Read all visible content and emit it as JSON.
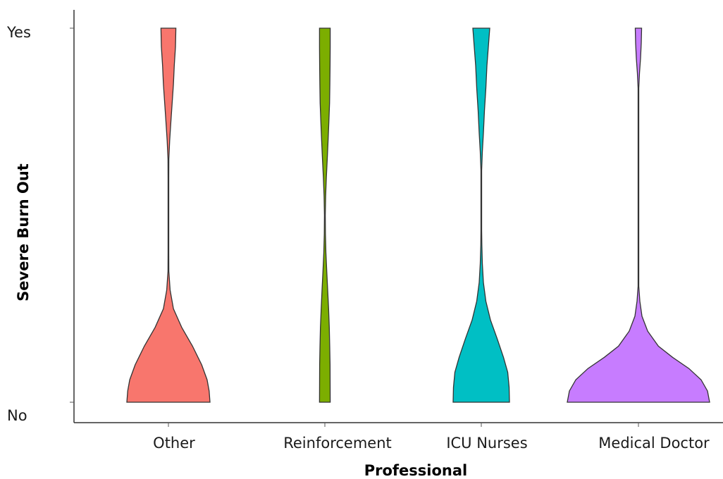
{
  "chart_data": {
    "type": "violin",
    "title": "",
    "xlabel": "Professional",
    "ylabel": "Severe Burn Out",
    "categories": [
      "Other",
      "Reinforcement",
      "ICU Nurses",
      "Medical Doctor"
    ],
    "y_levels": [
      "No",
      "Yes"
    ],
    "ylim": [
      0,
      1
    ],
    "grid": false,
    "legend": "none",
    "colors": [
      "#F8766D",
      "#7CAE00",
      "#00BFC4",
      "#C77CFF"
    ],
    "series": [
      {
        "category": "Other",
        "color": "#F8766D",
        "density_profile": [
          [
            0.0,
            1.0
          ],
          [
            0.03,
            0.98
          ],
          [
            0.06,
            0.93
          ],
          [
            0.1,
            0.8
          ],
          [
            0.15,
            0.58
          ],
          [
            0.2,
            0.32
          ],
          [
            0.25,
            0.12
          ],
          [
            0.3,
            0.04
          ],
          [
            0.35,
            0.01
          ],
          [
            0.4,
            0.0
          ],
          [
            0.55,
            0.0
          ],
          [
            0.6,
            0.0
          ],
          [
            0.65,
            0.01
          ],
          [
            0.7,
            0.03
          ],
          [
            0.75,
            0.06
          ],
          [
            0.8,
            0.09
          ],
          [
            0.85,
            0.12
          ],
          [
            0.9,
            0.14
          ],
          [
            0.95,
            0.17
          ],
          [
            1.0,
            0.18
          ]
        ]
      },
      {
        "category": "Reinforcement",
        "color": "#7CAE00",
        "density_profile": [
          [
            0.0,
            0.36
          ],
          [
            0.05,
            0.355
          ],
          [
            0.1,
            0.35
          ],
          [
            0.15,
            0.33
          ],
          [
            0.2,
            0.3
          ],
          [
            0.25,
            0.25
          ],
          [
            0.3,
            0.19
          ],
          [
            0.35,
            0.13
          ],
          [
            0.4,
            0.07
          ],
          [
            0.45,
            0.04
          ],
          [
            0.5,
            0.03
          ],
          [
            0.55,
            0.05
          ],
          [
            0.6,
            0.1
          ],
          [
            0.65,
            0.16
          ],
          [
            0.7,
            0.22
          ],
          [
            0.75,
            0.27
          ],
          [
            0.8,
            0.32
          ],
          [
            0.85,
            0.34
          ],
          [
            0.9,
            0.35
          ],
          [
            0.95,
            0.36
          ],
          [
            1.0,
            0.36
          ]
        ]
      },
      {
        "category": "ICU Nurses",
        "color": "#00BFC4",
        "density_profile": [
          [
            0.0,
            0.8
          ],
          [
            0.04,
            0.79
          ],
          [
            0.08,
            0.75
          ],
          [
            0.12,
            0.63
          ],
          [
            0.17,
            0.45
          ],
          [
            0.22,
            0.26
          ],
          [
            0.27,
            0.13
          ],
          [
            0.32,
            0.06
          ],
          [
            0.37,
            0.03
          ],
          [
            0.42,
            0.015
          ],
          [
            0.46,
            0.005
          ],
          [
            0.5,
            0.0
          ],
          [
            0.57,
            0.0
          ],
          [
            0.62,
            0.01
          ],
          [
            0.67,
            0.03
          ],
          [
            0.72,
            0.06
          ],
          [
            0.78,
            0.09
          ],
          [
            0.84,
            0.13
          ],
          [
            0.9,
            0.16
          ],
          [
            1.0,
            0.24
          ]
        ]
      },
      {
        "category": "Medical Doctor",
        "color": "#C77CFF",
        "density_profile": [
          [
            0.0,
            1.0
          ],
          [
            0.03,
            0.97
          ],
          [
            0.06,
            0.88
          ],
          [
            0.09,
            0.71
          ],
          [
            0.12,
            0.48
          ],
          [
            0.15,
            0.28
          ],
          [
            0.19,
            0.13
          ],
          [
            0.23,
            0.05
          ],
          [
            0.27,
            0.02
          ],
          [
            0.31,
            0.005
          ],
          [
            0.36,
            0.0
          ],
          [
            0.8,
            0.0
          ],
          [
            0.84,
            0.005
          ],
          [
            0.88,
            0.015
          ],
          [
            0.92,
            0.03
          ],
          [
            0.96,
            0.04
          ],
          [
            1.0,
            0.045
          ]
        ]
      }
    ]
  }
}
